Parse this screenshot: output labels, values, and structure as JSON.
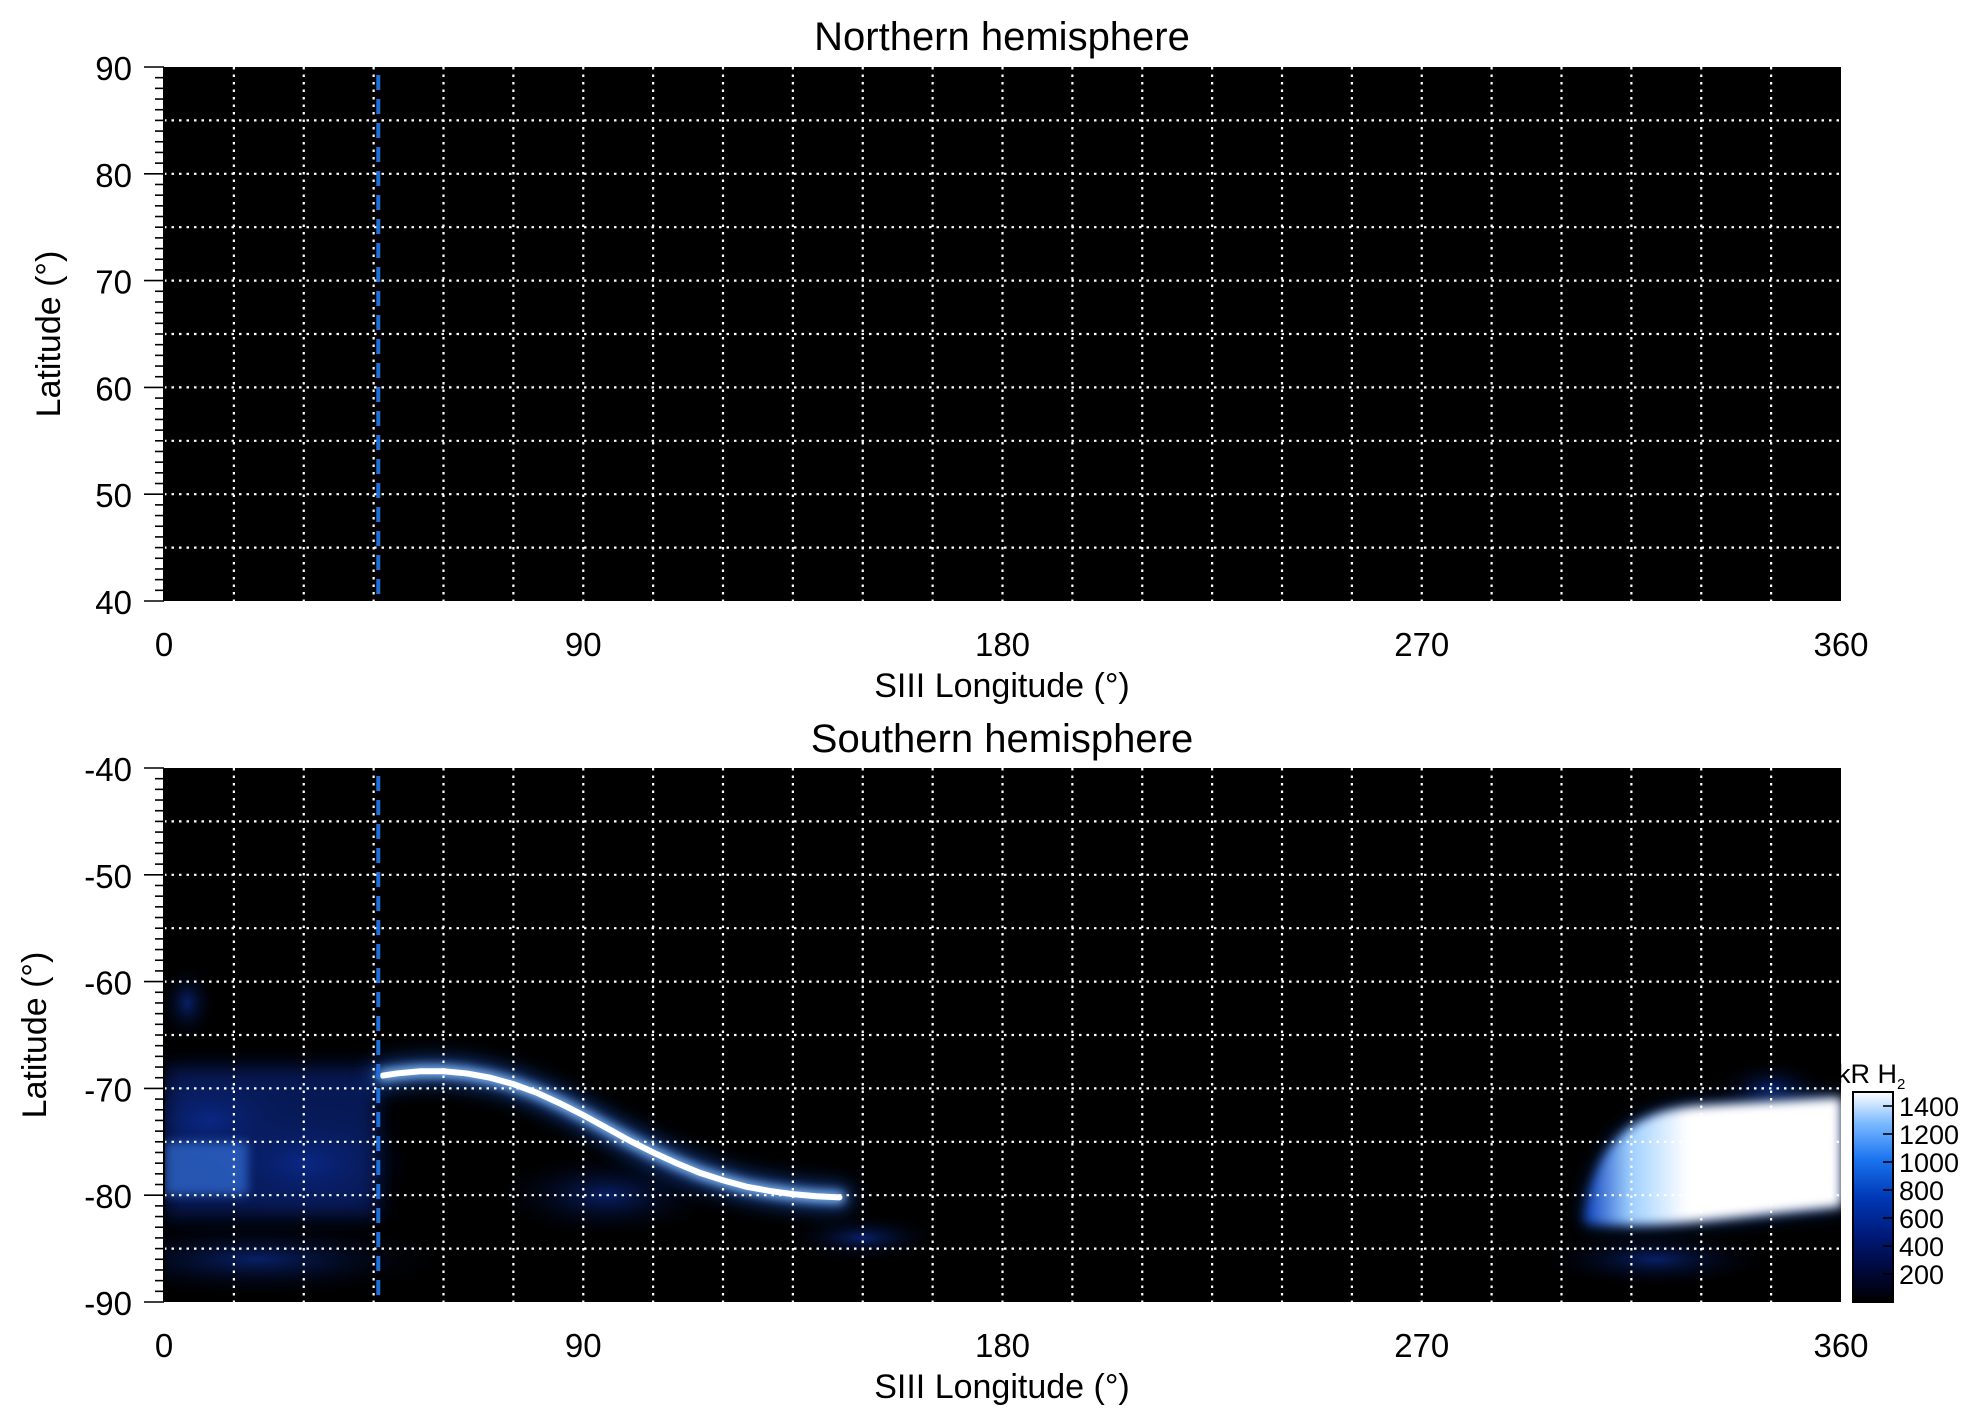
{
  "chart_data": [
    {
      "type": "heatmap",
      "title": "Northern hemisphere",
      "xlabel": "SIII Longitude (°)",
      "ylabel": "Latitude (°)",
      "xlim": [
        0,
        360
      ],
      "ylim": [
        40,
        90
      ],
      "xticks": [
        "0",
        "90",
        "180",
        "270",
        "360"
      ],
      "yticks": [
        "40",
        "50",
        "60",
        "70",
        "80",
        "90"
      ],
      "grid": true,
      "grid_longitude_step": 15,
      "grid_latitude_step": 5,
      "marker_longitude": 46,
      "marker_color": "#1e6fd9",
      "emission_present": false
    },
    {
      "type": "heatmap",
      "title": "Southern hemisphere",
      "xlabel": "SIII Longitude (°)",
      "ylabel": "Latitude (°)",
      "xlim": [
        0,
        360
      ],
      "ylim": [
        -90,
        -40
      ],
      "xticks": [
        "0",
        "90",
        "180",
        "270",
        "360"
      ],
      "yticks": [
        "-40",
        "-50",
        "-60",
        "-70",
        "-80",
        "-90"
      ],
      "grid": true,
      "grid_longitude_step": 15,
      "grid_latitude_step": 5,
      "marker_longitude": 46,
      "marker_color": "#1e6fd9",
      "emission_present": true,
      "main_oval": {
        "longitude": [
          47,
          50,
          55,
          60,
          65,
          70,
          75,
          80,
          85,
          90,
          95,
          100,
          105,
          110,
          115,
          120,
          125,
          130,
          135,
          140,
          145
        ],
        "latitude": [
          -68.8,
          -68.6,
          -68.4,
          -68.4,
          -68.6,
          -69.0,
          -69.6,
          -70.4,
          -71.4,
          -72.5,
          -73.7,
          -74.9,
          -76.0,
          -77.0,
          -77.9,
          -78.6,
          -79.2,
          -79.6,
          -79.9,
          -80.1,
          -80.2
        ]
      },
      "bright_region": {
        "longitude_range": [
          305,
          360
        ],
        "latitude_range": [
          -82,
          -72
        ],
        "peak_kR": 1400
      },
      "colorbar": {
        "label": "kR H",
        "label_subscript": "2",
        "ticks": [
          "1400",
          "1200",
          "1000",
          "800",
          "600",
          "400",
          "200"
        ],
        "range": [
          0,
          1500
        ],
        "colors": [
          "#000000",
          "#00083a",
          "#001a7a",
          "#0039b8",
          "#1b74f0",
          "#7ab9ff",
          "#ffffff"
        ]
      }
    }
  ]
}
